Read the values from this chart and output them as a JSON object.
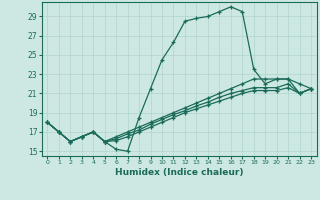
{
  "xlabel": "Humidex (Indice chaleur)",
  "bg_color": "#cde8e2",
  "grid_color": "#afd4cc",
  "line_color": "#1a6b5a",
  "xlim": [
    -0.5,
    23.5
  ],
  "ylim": [
    14.5,
    30.5
  ],
  "xticks": [
    0,
    1,
    2,
    3,
    4,
    5,
    6,
    7,
    8,
    9,
    10,
    11,
    12,
    13,
    14,
    15,
    16,
    17,
    18,
    19,
    20,
    21,
    22,
    23
  ],
  "yticks": [
    15,
    17,
    19,
    21,
    23,
    25,
    27,
    29
  ],
  "line1_x": [
    0,
    1,
    2,
    3,
    4,
    5,
    6,
    7,
    8,
    9,
    10,
    11,
    12,
    13,
    14,
    15,
    16,
    17,
    18,
    19,
    20,
    21,
    22,
    23
  ],
  "line1_y": [
    18.0,
    17.0,
    16.0,
    16.5,
    17.0,
    16.0,
    15.2,
    15.0,
    18.5,
    21.5,
    24.5,
    26.3,
    28.5,
    28.8,
    29.0,
    29.5,
    30.0,
    29.5,
    23.5,
    22.0,
    22.5,
    22.5,
    21.0,
    21.5
  ],
  "line2_x": [
    0,
    1,
    2,
    3,
    4,
    5,
    6,
    7,
    8,
    9,
    10,
    11,
    12,
    13,
    14,
    15,
    16,
    17,
    18,
    19,
    20,
    21,
    22,
    23
  ],
  "line2_y": [
    18.0,
    17.0,
    16.0,
    16.5,
    17.0,
    16.0,
    16.5,
    17.0,
    17.5,
    18.0,
    18.5,
    19.0,
    19.5,
    20.0,
    20.5,
    21.0,
    21.5,
    22.0,
    22.5,
    22.5,
    22.5,
    22.5,
    22.0,
    21.5
  ],
  "line3_x": [
    0,
    1,
    2,
    3,
    4,
    5,
    6,
    7,
    8,
    9,
    10,
    11,
    12,
    13,
    14,
    15,
    16,
    17,
    18,
    19,
    20,
    21,
    22,
    23
  ],
  "line3_y": [
    18.0,
    17.0,
    16.0,
    16.5,
    17.0,
    16.0,
    16.3,
    16.8,
    17.2,
    17.8,
    18.3,
    18.8,
    19.2,
    19.7,
    20.1,
    20.6,
    21.0,
    21.3,
    21.6,
    21.6,
    21.6,
    22.0,
    21.0,
    21.5
  ],
  "line4_x": [
    0,
    1,
    2,
    3,
    4,
    5,
    6,
    7,
    8,
    9,
    10,
    11,
    12,
    13,
    14,
    15,
    16,
    17,
    18,
    19,
    20,
    21,
    22,
    23
  ],
  "line4_y": [
    18.0,
    17.0,
    16.0,
    16.5,
    17.0,
    16.0,
    16.1,
    16.5,
    17.0,
    17.5,
    18.0,
    18.5,
    19.0,
    19.4,
    19.8,
    20.2,
    20.6,
    21.0,
    21.3,
    21.3,
    21.3,
    21.6,
    21.0,
    21.5
  ]
}
